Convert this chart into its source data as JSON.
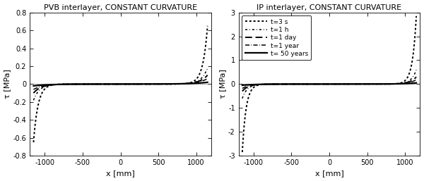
{
  "title_left": "PVB interlayer, CONSTANT CURVATURE",
  "title_right": "IP interlayer, CONSTANT CURVATURE",
  "xlabel": "x [mm]",
  "ylabel": "τ [MPa]",
  "xlim": [
    -1200,
    1200
  ],
  "ylim_left": [
    -0.8,
    0.8
  ],
  "ylim_right": [
    -3.0,
    3.0
  ],
  "yticks_left": [
    -0.8,
    -0.6,
    -0.4,
    -0.2,
    0.0,
    0.2,
    0.4,
    0.6,
    0.8
  ],
  "yticks_right": [
    -3,
    -2,
    -1,
    0,
    1,
    2,
    3
  ],
  "xticks": [
    -1000,
    -500,
    0,
    500,
    1000
  ],
  "legend_labels": [
    "t=3 s",
    "t=1 h",
    "t=1 day",
    "t=1 year",
    "t= 50 years"
  ],
  "line_styles": [
    "dotted",
    "dashdot_loose",
    "dashed",
    "dashdot",
    "solid"
  ],
  "line_color": "#000000",
  "background_color": "#ffffff",
  "x_half_span": 1150,
  "peak_pvb": [
    0.65,
    0.18,
    0.1,
    0.06,
    0.02
  ],
  "peak_ip": [
    2.85,
    0.6,
    0.3,
    0.18,
    0.05
  ],
  "decay_pvb": [
    60,
    80,
    100,
    130,
    200
  ],
  "decay_ip": [
    50,
    65,
    80,
    100,
    160
  ]
}
